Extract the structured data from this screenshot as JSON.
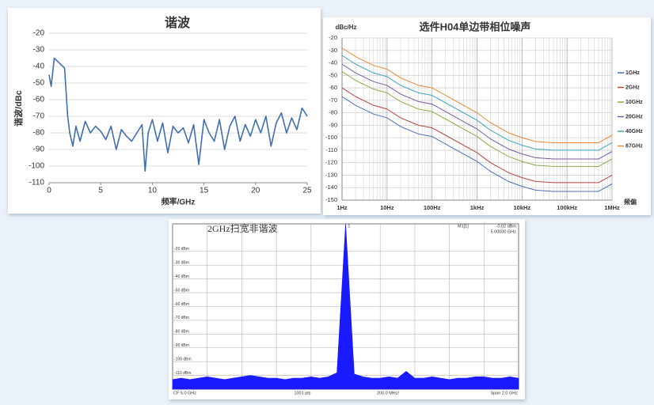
{
  "chart_data": [
    {
      "type": "line",
      "title": "谐波",
      "x_label": "频率/GHz",
      "y_label": "谐波/dBc",
      "color": "#3f6fb0",
      "grid": "y",
      "x": [
        0,
        0.2,
        0.5,
        1,
        1.5,
        1.8,
        2,
        2.3,
        2.6,
        3,
        3.5,
        4,
        4.5,
        5,
        5.5,
        6,
        6.5,
        7,
        7.5,
        8,
        8.5,
        9,
        9.3,
        9.6,
        10,
        10.5,
        11,
        11.5,
        12,
        12.5,
        13,
        13.5,
        14,
        14.5,
        15,
        15.5,
        16,
        16.5,
        17,
        17.5,
        18,
        18.5,
        19,
        19.5,
        20,
        20.5,
        21,
        21.5,
        22,
        22.5,
        23,
        23.5,
        24,
        24.5,
        25
      ],
      "values": [
        -45,
        -52,
        -35,
        -38,
        -41,
        -70,
        -80,
        -88,
        -76,
        -85,
        -73,
        -80,
        -76,
        -79,
        -84,
        -76,
        -90,
        -78,
        -82,
        -85,
        -80,
        -75,
        -103,
        -80,
        -72,
        -85,
        -74,
        -92,
        -76,
        -80,
        -77,
        -86,
        -75,
        -99,
        -72,
        -80,
        -85,
        -72,
        -90,
        -76,
        -70,
        -85,
        -75,
        -82,
        -72,
        -80,
        -70,
        -88,
        -74,
        -68,
        -80,
        -71,
        -78,
        -65,
        -70
      ],
      "xlim": [
        0,
        25
      ],
      "xticks": [
        0,
        5,
        10,
        15,
        20,
        25
      ],
      "ylim": [
        -110,
        -20
      ],
      "yticks": [
        -20,
        -30,
        -40,
        -50,
        -60,
        -70,
        -80,
        -90,
        -100,
        -110
      ]
    },
    {
      "type": "line",
      "title": "选件H04单边带相位噪声",
      "x_label": "频偏",
      "y_label": "dBc/Hz",
      "log_x": true,
      "grid": "both",
      "legend": "right",
      "x": [
        1,
        2,
        5,
        10,
        20,
        50,
        100,
        200,
        500,
        1000,
        2000,
        5000,
        10000,
        20000,
        50000,
        100000,
        200000,
        500000,
        1000000
      ],
      "series": [
        {
          "name": "1GHz",
          "color": "#4a6fb5",
          "values": [
            -67,
            -74,
            -81,
            -84,
            -91,
            -97,
            -99,
            -105,
            -113,
            -119,
            -127,
            -135,
            -139,
            -142,
            -143,
            -143,
            -143,
            -143,
            -137
          ]
        },
        {
          "name": "2GHz",
          "color": "#b8433f",
          "values": [
            -60,
            -67,
            -74,
            -77,
            -84,
            -90,
            -92,
            -98,
            -106,
            -112,
            -120,
            -128,
            -132,
            -135,
            -136,
            -136,
            -136,
            -136,
            -130
          ]
        },
        {
          "name": "10GHz",
          "color": "#8cad4a",
          "values": [
            -47,
            -54,
            -61,
            -64,
            -71,
            -77,
            -79,
            -85,
            -93,
            -99,
            -107,
            -115,
            -119,
            -122,
            -123,
            -123,
            -123,
            -123,
            -117
          ]
        },
        {
          "name": "20GHz",
          "color": "#7a5aa0",
          "values": [
            -41,
            -48,
            -55,
            -58,
            -65,
            -71,
            -73,
            -79,
            -87,
            -93,
            -101,
            -109,
            -113,
            -116,
            -117,
            -117,
            -117,
            -117,
            -111
          ]
        },
        {
          "name": "40GHz",
          "color": "#3ea4c0",
          "values": [
            -34,
            -41,
            -48,
            -51,
            -58,
            -64,
            -66,
            -72,
            -80,
            -86,
            -94,
            -102,
            -106,
            -109,
            -110,
            -110,
            -110,
            -110,
            -104
          ]
        },
        {
          "name": "67GHz",
          "color": "#e8893a",
          "values": [
            -28,
            -35,
            -42,
            -45,
            -52,
            -58,
            -60,
            -66,
            -74,
            -80,
            -88,
            -96,
            -100,
            -103,
            -104,
            -104,
            -104,
            -104,
            -98
          ]
        }
      ],
      "xlim": [
        1,
        1000000
      ],
      "xticks": [
        {
          "value": 1,
          "label": "1Hz"
        },
        {
          "value": 10,
          "label": "10Hz"
        },
        {
          "value": 100,
          "label": "100Hz"
        },
        {
          "value": 1000,
          "label": "1kHz"
        },
        {
          "value": 10000,
          "label": "10kHz"
        },
        {
          "value": 100000,
          "label": "100kHz"
        },
        {
          "value": 1000000,
          "label": "1MHz"
        }
      ],
      "ylim": [
        -150,
        -20
      ],
      "yticks": [
        -20,
        -30,
        -40,
        -50,
        -60,
        -70,
        -80,
        -90,
        -100,
        -110,
        -120,
        -130,
        -140,
        -150
      ]
    },
    {
      "type": "area",
      "title": "2GHz扫宽非谐波",
      "color": "#1a1aff",
      "grid": "both",
      "x": [
        4.0,
        4.05,
        4.1,
        4.15,
        4.2,
        4.25,
        4.3,
        4.35,
        4.4,
        4.45,
        4.5,
        4.55,
        4.6,
        4.65,
        4.7,
        4.75,
        4.8,
        4.85,
        4.9,
        4.95,
        5.0,
        5.05,
        5.1,
        5.15,
        5.2,
        5.25,
        5.3,
        5.35,
        5.4,
        5.45,
        5.5,
        5.55,
        5.6,
        5.65,
        5.7,
        5.75,
        5.8,
        5.85,
        5.9,
        5.95,
        6.0
      ],
      "values": [
        -113,
        -112,
        -113,
        -112,
        -111,
        -112,
        -113,
        -112,
        -111,
        -110,
        -111,
        -112,
        -112,
        -113,
        -112,
        -112,
        -111,
        -112,
        -111,
        -108,
        -0.02,
        -109,
        -111,
        -112,
        -112,
        -111,
        -112,
        -107,
        -112,
        -112,
        -111,
        -112,
        -113,
        -112,
        -112,
        -111,
        -111,
        -112,
        -112,
        -111,
        -112
      ],
      "xlim": [
        4.0,
        6.0
      ],
      "ylim": [
        -120,
        0
      ],
      "yticks": [
        {
          "value": -20,
          "label": "-20 dBm"
        },
        {
          "value": -30,
          "label": "-30 dBm"
        },
        {
          "value": -40,
          "label": "-40 dBm"
        },
        {
          "value": -50,
          "label": "-50 dBm"
        },
        {
          "value": -60,
          "label": "-60 dBm"
        },
        {
          "value": -70,
          "label": "-70 dBm"
        },
        {
          "value": -80,
          "label": "-80 dBm"
        },
        {
          "value": -90,
          "label": "-90 dBm"
        },
        {
          "value": -100,
          "label": "-100 dBm"
        },
        {
          "value": -110,
          "label": "-110 dBm"
        }
      ],
      "marker": {
        "label": "1",
        "name": "M1[1]",
        "value_label": "-0.02 dBm",
        "freq_label": "5.00000 GHz"
      },
      "footer": [
        "CF 5.0 GHz",
        "1001 pts",
        "200.0 MHz/",
        "Span 2.0 GHz"
      ]
    }
  ]
}
